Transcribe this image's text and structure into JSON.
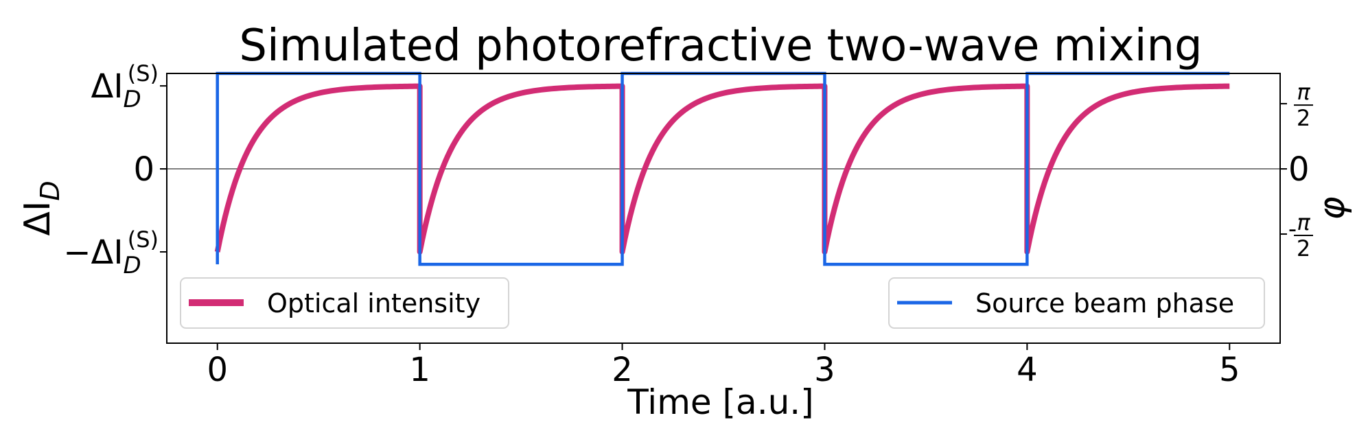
{
  "chart_data": {
    "type": "line",
    "title": "Simulated photorefractive two-wave mixing",
    "xlabel": "Time [a.u.]",
    "ylabel": "ΔI_D",
    "ylabel_right": "φ",
    "xlim": [
      -0.25,
      5.25
    ],
    "ylim": [
      -2.1,
      1.15
    ],
    "ylim_right": [
      -4.2,
      2.3
    ],
    "x_ticks": [
      0,
      1,
      2,
      3,
      4,
      5
    ],
    "x_tick_labels": [
      "0",
      "1",
      "2",
      "3",
      "4",
      "5"
    ],
    "y_ticks": [
      {
        "value": 1,
        "main": "ΔI",
        "sub": "D",
        "sup": "(S)",
        "prefix": ""
      },
      {
        "value": 0,
        "main": "0",
        "sub": "",
        "sup": "",
        "prefix": ""
      },
      {
        "value": -1,
        "main": "ΔI",
        "sub": "D",
        "sup": "(S)",
        "prefix": "−"
      }
    ],
    "y_right_ticks": [
      {
        "value": 1.5708,
        "num": "π",
        "den": "2",
        "sign": ""
      },
      {
        "value": 0,
        "num": "0",
        "den": "",
        "sign": ""
      },
      {
        "value": -1.5708,
        "num": "π",
        "den": "2",
        "sign": "-"
      }
    ],
    "zero_line": true,
    "series": [
      {
        "name": "Optical intensity",
        "axis": "left",
        "color": "#d22c74",
        "model": "exponential relaxation toward ±1, resets to -1 at each phase switch",
        "tau": 0.16,
        "switch_times": [
          0,
          1,
          2,
          3,
          4
        ],
        "x_end": 5
      },
      {
        "name": "Source beam phase",
        "axis": "right",
        "color": "#1a66e6",
        "x": [
          0,
          0,
          1,
          1,
          2,
          2,
          3,
          3,
          4,
          4,
          5
        ],
        "y": [
          -2.3,
          2.3,
          2.3,
          -2.3,
          -2.3,
          2.3,
          2.3,
          -2.3,
          -2.3,
          2.3,
          2.3
        ]
      }
    ],
    "legend": [
      {
        "label": "Optical intensity",
        "placement": "lower-left"
      },
      {
        "label": "Source beam phase",
        "placement": "lower-right"
      }
    ]
  }
}
